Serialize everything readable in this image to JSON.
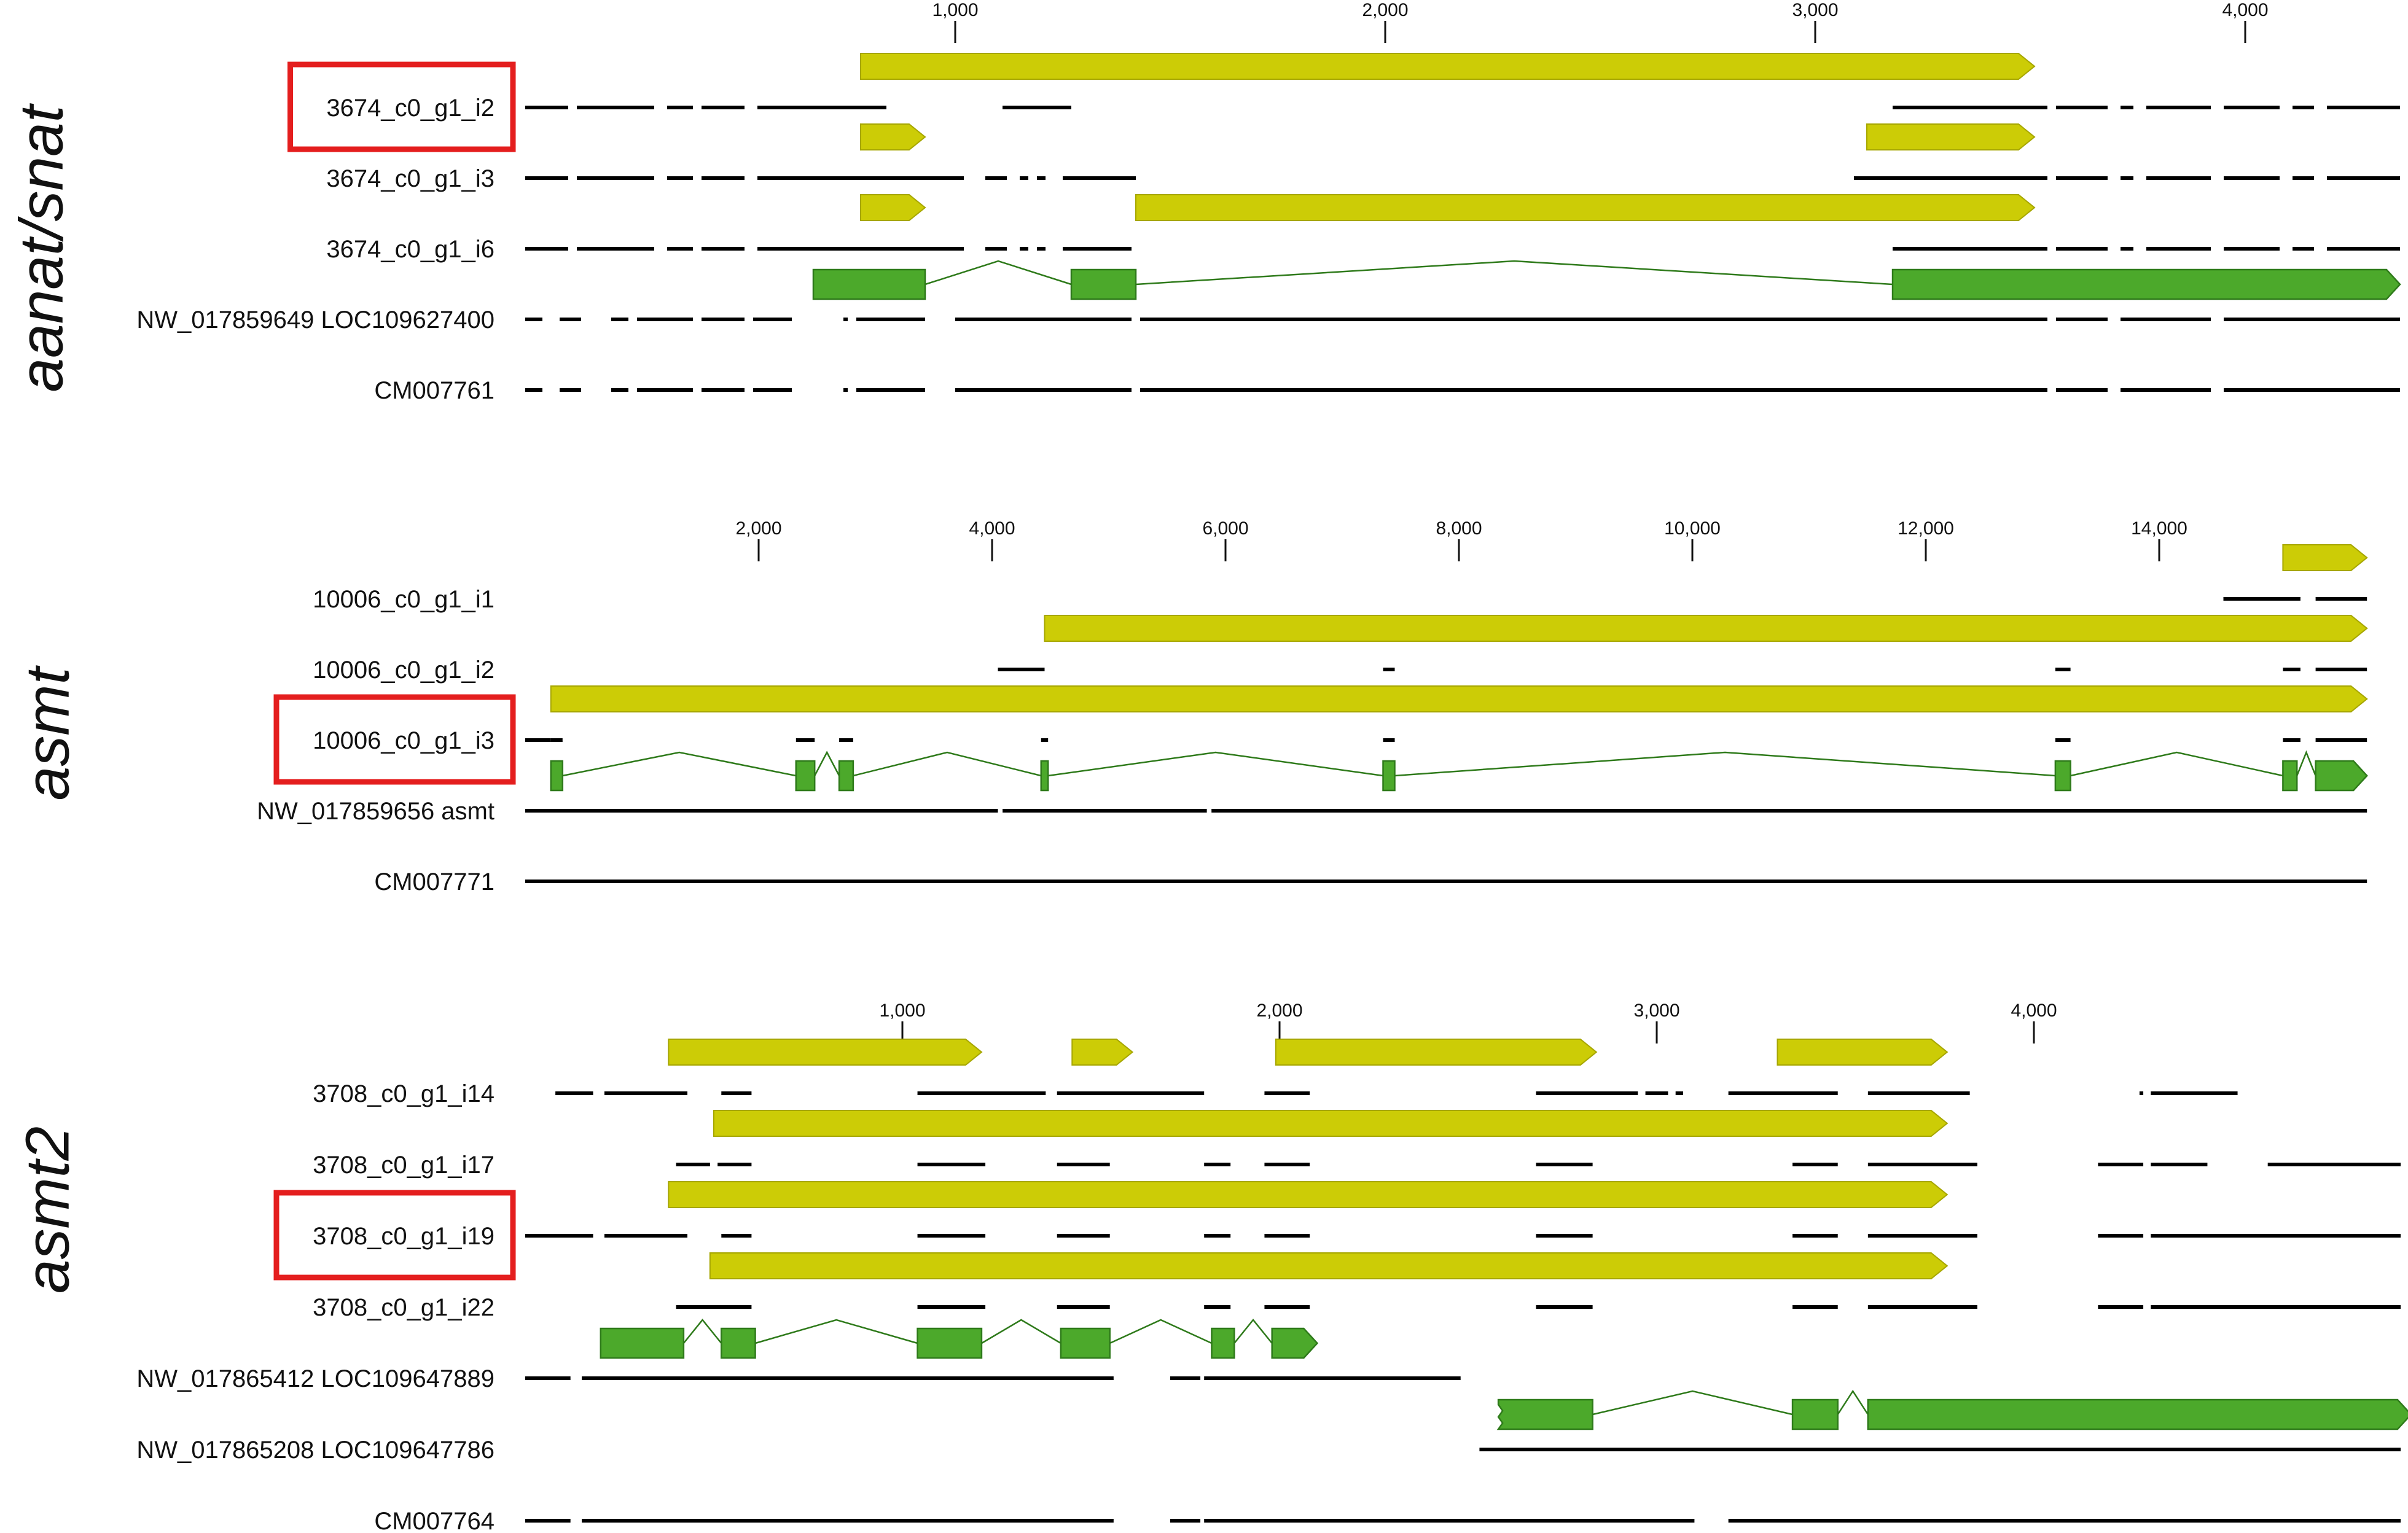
{
  "figure": {
    "colors": {
      "cds": "#cccc06",
      "cds_stroke": "#a6a600",
      "gene": "#4ca92b",
      "gene_stroke": "#2e7a1a",
      "coverage": "#000000",
      "highlight": "#e41e1e"
    },
    "panels": [
      {
        "id": "aanat-snat",
        "title": "aanat/snat",
        "scale": {
          "ticks": [
            1000,
            2000,
            3000,
            4000
          ],
          "tick_labels": [
            "1,000",
            "2,000",
            "3,000",
            "4,000"
          ]
        },
        "tracks": [
          {
            "label": "3674_c0_g1_i2",
            "highlighted": true,
            "cds": [
              {
                "start": 780,
                "end": 3510,
                "arrow": true
              }
            ],
            "coverage": [
              [
                0,
                100
              ],
              [
                120,
                300
              ],
              [
                330,
                390
              ],
              [
                410,
                510
              ],
              [
                540,
                840
              ],
              [
                1110,
                1270
              ],
              [
                3180,
                3540
              ],
              [
                3560,
                3680
              ],
              [
                3710,
                3740
              ],
              [
                3770,
                3920
              ],
              [
                3950,
                4080
              ],
              [
                4110,
                4160
              ],
              [
                4190,
                4360
              ]
            ]
          },
          {
            "label": "3674_c0_g1_i3",
            "highlighted": false,
            "cds": [
              {
                "start": 780,
                "end": 930,
                "arrow": true
              },
              {
                "start": 3120,
                "end": 3510,
                "arrow": true
              }
            ],
            "coverage": [
              [
                0,
                100
              ],
              [
                120,
                300
              ],
              [
                330,
                390
              ],
              [
                410,
                510
              ],
              [
                540,
                1020
              ],
              [
                1070,
                1120
              ],
              [
                1150,
                1170
              ],
              [
                1190,
                1210
              ],
              [
                1250,
                1420
              ],
              [
                3090,
                3540
              ],
              [
                3560,
                3680
              ],
              [
                3710,
                3740
              ],
              [
                3770,
                3920
              ],
              [
                3950,
                4080
              ],
              [
                4110,
                4160
              ],
              [
                4190,
                4360
              ]
            ]
          },
          {
            "label": "3674_c0_g1_i6",
            "highlighted": false,
            "cds": [
              {
                "start": 780,
                "end": 930,
                "arrow": true
              },
              {
                "start": 1420,
                "end": 3510,
                "arrow": true
              }
            ],
            "coverage": [
              [
                0,
                100
              ],
              [
                120,
                300
              ],
              [
                330,
                390
              ],
              [
                410,
                510
              ],
              [
                540,
                1020
              ],
              [
                1070,
                1120
              ],
              [
                1150,
                1170
              ],
              [
                1190,
                1210
              ],
              [
                1250,
                1410
              ],
              [
                3180,
                3540
              ],
              [
                3560,
                3680
              ],
              [
                3710,
                3740
              ],
              [
                3770,
                3920
              ],
              [
                3950,
                4080
              ],
              [
                4110,
                4160
              ],
              [
                4190,
                4360
              ]
            ]
          },
          {
            "label": "NW_017859649 LOC109627400",
            "highlighted": false,
            "gene": {
              "exons": [
                [
                  670,
                  930
                ],
                [
                  1270,
                  1420
                ],
                [
                  3180,
                  4360
                ]
              ],
              "end_arrow": true
            },
            "coverage": [
              [
                0,
                40
              ],
              [
                80,
                130
              ],
              [
                200,
                240
              ],
              [
                260,
                390
              ],
              [
                410,
                510
              ],
              [
                530,
                620
              ],
              [
                740,
                750
              ],
              [
                770,
                930
              ],
              [
                1000,
                1410
              ],
              [
                1430,
                3540
              ],
              [
                3560,
                3680
              ],
              [
                3710,
                3920
              ],
              [
                3950,
                4360
              ]
            ]
          },
          {
            "label": "CM007761",
            "highlighted": false,
            "coverage": [
              [
                0,
                40
              ],
              [
                80,
                130
              ],
              [
                200,
                240
              ],
              [
                260,
                390
              ],
              [
                410,
                510
              ],
              [
                530,
                620
              ],
              [
                740,
                750
              ],
              [
                770,
                930
              ],
              [
                1000,
                1410
              ],
              [
                1430,
                3540
              ],
              [
                3560,
                3680
              ],
              [
                3710,
                3920
              ],
              [
                3950,
                4360
              ]
            ]
          }
        ]
      },
      {
        "id": "asmt",
        "title": "asmt",
        "scale": {
          "ticks": [
            2000,
            4000,
            6000,
            8000,
            10000,
            12000,
            14000
          ],
          "tick_labels": [
            "2,000",
            "4,000",
            "6,000",
            "8,000",
            "10,000",
            "12,000",
            "14,000"
          ]
        },
        "tracks": [
          {
            "label": "10006_c0_g1_i1",
            "highlighted": false,
            "cds": [
              {
                "start": 15060,
                "end": 15780,
                "arrow": true
              }
            ],
            "coverage": [
              [
                14550,
                15210
              ],
              [
                15340,
                15780
              ]
            ]
          },
          {
            "label": "10006_c0_g1_i2",
            "highlighted": false,
            "cds": [
              {
                "start": 4450,
                "end": 15780,
                "arrow": true
              }
            ],
            "coverage": [
              [
                4050,
                4450
              ],
              [
                7350,
                7450
              ],
              [
                13110,
                13240
              ],
              [
                15060,
                15210
              ],
              [
                15340,
                15780
              ]
            ]
          },
          {
            "label": "10006_c0_g1_i3",
            "highlighted": true,
            "cds": [
              {
                "start": 220,
                "end": 15780,
                "arrow": true
              }
            ],
            "coverage": [
              [
                0,
                220
              ],
              [
                220,
                320
              ],
              [
                2320,
                2480
              ],
              [
                2690,
                2810
              ],
              [
                4420,
                4480
              ],
              [
                7350,
                7450
              ],
              [
                13110,
                13240
              ],
              [
                15060,
                15210
              ],
              [
                15340,
                15780
              ]
            ]
          },
          {
            "label": "NW_017859656 asmt",
            "highlighted": false,
            "gene": {
              "exons": [
                [
                  220,
                  320
                ],
                [
                  2320,
                  2480
                ],
                [
                  2690,
                  2810
                ],
                [
                  4420,
                  4480
                ],
                [
                  7350,
                  7450
                ],
                [
                  13110,
                  13240
                ],
                [
                  15060,
                  15180
                ],
                [
                  15340,
                  15780
                ]
              ],
              "end_arrow": true
            },
            "coverage": [
              [
                0,
                4050
              ],
              [
                4090,
                5840
              ],
              [
                5880,
                15780
              ]
            ]
          },
          {
            "label": "CM007771",
            "highlighted": false,
            "coverage": [
              [
                0,
                15780
              ]
            ]
          }
        ]
      },
      {
        "id": "asmt2",
        "title": "asmt2",
        "scale": {
          "ticks": [
            1000,
            2000,
            3000,
            4000
          ],
          "tick_labels": [
            "1,000",
            "2,000",
            "3,000",
            "4,000"
          ]
        },
        "tracks": [
          {
            "label": "3708_c0_g1_i14",
            "highlighted": false,
            "cds": [
              {
                "start": 380,
                "end": 1210,
                "arrow": true
              },
              {
                "start": 1450,
                "end": 1610,
                "arrow": true
              },
              {
                "start": 1990,
                "end": 2840,
                "arrow": true
              },
              {
                "start": 3320,
                "end": 3770,
                "arrow": true
              }
            ],
            "coverage": [
              [
                80,
                180
              ],
              [
                210,
                430
              ],
              [
                520,
                600
              ],
              [
                1040,
                1380
              ],
              [
                1410,
                1800
              ],
              [
                1960,
                2080
              ],
              [
                2680,
                2950
              ],
              [
                2970,
                3030
              ],
              [
                3050,
                3070
              ],
              [
                3190,
                3480
              ],
              [
                3560,
                3830
              ],
              [
                4280,
                4290
              ],
              [
                4310,
                4540
              ]
            ]
          },
          {
            "label": "3708_c0_g1_i17",
            "highlighted": false,
            "cds": [
              {
                "start": 500,
                "end": 3770,
                "arrow": true
              }
            ],
            "coverage": [
              [
                400,
                490
              ],
              [
                510,
                600
              ],
              [
                1040,
                1220
              ],
              [
                1410,
                1550
              ],
              [
                1800,
                1870
              ],
              [
                1960,
                2080
              ],
              [
                2680,
                2830
              ],
              [
                3360,
                3480
              ],
              [
                3560,
                3850
              ],
              [
                4170,
                4290
              ],
              [
                4310,
                4460
              ],
              [
                4620,
                5000
              ]
            ]
          },
          {
            "label": "3708_c0_g1_i19",
            "highlighted": true,
            "cds": [
              {
                "start": 380,
                "end": 3770,
                "arrow": true
              }
            ],
            "coverage": [
              [
                0,
                180
              ],
              [
                210,
                430
              ],
              [
                520,
                600
              ],
              [
                1040,
                1220
              ],
              [
                1410,
                1550
              ],
              [
                1800,
                1870
              ],
              [
                1960,
                2080
              ],
              [
                2680,
                2830
              ],
              [
                3360,
                3480
              ],
              [
                3560,
                3850
              ],
              [
                4170,
                4290
              ],
              [
                4310,
                5000
              ]
            ]
          },
          {
            "label": "3708_c0_g1_i22",
            "highlighted": false,
            "cds": [
              {
                "start": 490,
                "end": 3770,
                "arrow": true
              }
            ],
            "coverage": [
              [
                400,
                600
              ],
              [
                1040,
                1220
              ],
              [
                1410,
                1550
              ],
              [
                1800,
                1870
              ],
              [
                1960,
                2080
              ],
              [
                2680,
                2830
              ],
              [
                3360,
                3480
              ],
              [
                3560,
                3850
              ],
              [
                4170,
                4290
              ],
              [
                4310,
                5000
              ]
            ]
          },
          {
            "label": "NW_017865412 LOC109647889",
            "highlighted": false,
            "gene": {
              "exons": [
                [
                  200,
                  420
                ],
                [
                  520,
                  610
                ],
                [
                  1040,
                  1210
                ],
                [
                  1420,
                  1550
                ],
                [
                  1820,
                  1880
                ],
                [
                  1980,
                  2100
                ]
              ],
              "end_arrow": true
            },
            "coverage": [
              [
                0,
                120
              ],
              [
                150,
                1560
              ],
              [
                1710,
                1790
              ],
              [
                1800,
                2480
              ]
            ]
          },
          {
            "label": "NW_017865208  LOC109647786",
            "highlighted": false,
            "gene": {
              "exons": [
                [
                  2580,
                  2830
                ],
                [
                  3360,
                  3480
                ],
                [
                  3560,
                  5000
                ]
              ],
              "end_arrow": true,
              "start_jagged": true
            },
            "coverage": [
              [
                2530,
                5000
              ]
            ]
          },
          {
            "label": "CM007764",
            "highlighted": false,
            "coverage": [
              [
                0,
                120
              ],
              [
                150,
                1560
              ],
              [
                1710,
                1790
              ],
              [
                1800,
                3100
              ],
              [
                3190,
                5000
              ]
            ]
          }
        ]
      }
    ]
  }
}
